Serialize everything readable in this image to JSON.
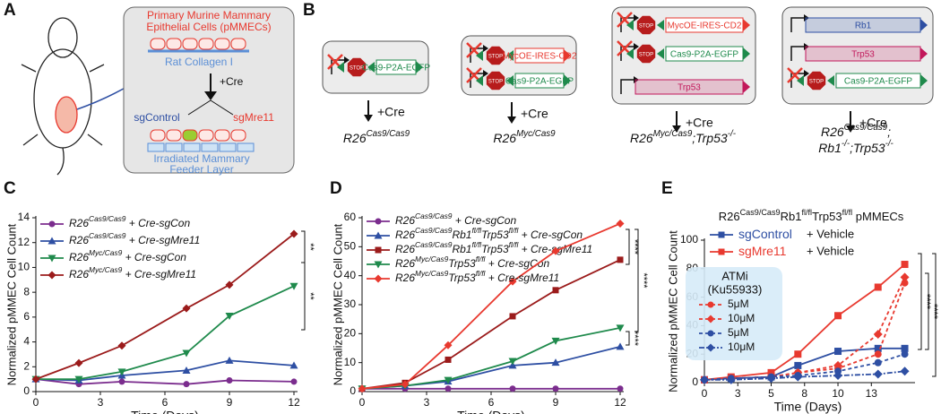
{
  "panel_a": {
    "panel_label": "A",
    "box_title": [
      "Primary Murine Mammary",
      "Epithelial Cells (pMMECs)"
    ],
    "collagen": "Rat Collagen I",
    "cre": "+Cre",
    "sg_control": "sgControl",
    "sg_mre11": "sgMre11",
    "feeder": [
      "Irradiated Mammary",
      "Feeder Layer"
    ]
  },
  "panel_b": {
    "panel_label": "B",
    "cre": "+Cre",
    "groups": [
      {
        "constructs": [
          {
            "label": "Cas9-P2A-EGFP",
            "stop_label": "STOP",
            "color": "#1f8a4c"
          }
        ],
        "genotype": [
          [
            "R26",
            "Cas9/Cas9"
          ]
        ]
      },
      {
        "constructs": [
          {
            "label": "MycOE-IRES-CD2",
            "stop_label": "STOP",
            "color": "#e8392f"
          },
          {
            "label": "Cas9-P2A-EGFP",
            "stop_label": "STOP",
            "color": "#1f8a4c"
          }
        ],
        "genotype": [
          [
            "R26",
            "Myc/Cas9"
          ]
        ]
      },
      {
        "constructs": [
          {
            "label": "MycOE-IRES-CD2",
            "stop_label": "STOP",
            "color": "#e8392f"
          },
          {
            "label": "Cas9-P2A-EGFP",
            "stop_label": "STOP",
            "color": "#1f8a4c"
          },
          {
            "label": "Trp53",
            "color": "#c2185b",
            "filled": true
          }
        ],
        "genotype": [
          [
            "R26",
            "Myc/Cas9",
            ";Trp53",
            "-/-"
          ]
        ]
      },
      {
        "constructs": [
          {
            "label": "Rb1",
            "color": "#2e4fa3",
            "filled": true
          },
          {
            "label": "Trp53",
            "color": "#c2185b",
            "filled": true
          },
          {
            "label": "Cas9-P2A-EGFP",
            "stop_label": "STOP",
            "color": "#1f8a4c"
          }
        ],
        "genotype": [
          [
            "R26",
            "Cas9/Cas9",
            ";"
          ],
          [
            "Rb1",
            "-/-",
            ";Trp53",
            "-/-"
          ]
        ]
      }
    ]
  },
  "chart_data": [
    {
      "type": "line",
      "panel_label": "C",
      "x_label": "Time (Days)",
      "y_label": "Normalized pMMEC Cell Count",
      "x": [
        0,
        2,
        4,
        7,
        9,
        12
      ],
      "xlim": [
        0,
        12
      ],
      "xticks": [
        0,
        3,
        6,
        9,
        12
      ],
      "ylim": [
        0,
        14
      ],
      "yticks": [
        0,
        2,
        4,
        6,
        8,
        10,
        12,
        14
      ],
      "series": [
        {
          "name": [
            "R26",
            "Cas9/Cas9",
            " + Cre-sgCon"
          ],
          "color": "#7b2d8e",
          "marker": "circle",
          "values": [
            1,
            0.6,
            0.8,
            0.6,
            0.9,
            0.8
          ]
        },
        {
          "name": [
            "R26",
            "Cas9/Cas9",
            " + Cre-sgMre11"
          ],
          "color": "#2e4fa3",
          "marker": "triangle-up",
          "values": [
            1,
            0.9,
            1.3,
            1.7,
            2.5,
            2.1
          ]
        },
        {
          "name": [
            "R26",
            "Myc/Cas9",
            " + Cre-sgCon"
          ],
          "color": "#1f8a4c",
          "marker": "triangle-down",
          "values": [
            1,
            1.0,
            1.6,
            3.1,
            6.1,
            8.5
          ]
        },
        {
          "name": [
            "R26",
            "Myc/Cas9",
            " + Cre-sgMre11"
          ],
          "color": "#9b1b1b",
          "marker": "diamond",
          "values": [
            1,
            2.3,
            3.7,
            6.7,
            8.6,
            12.7
          ]
        }
      ],
      "annotations": [
        "**",
        "**"
      ]
    },
    {
      "type": "line",
      "panel_label": "D",
      "x_label": "Time (Days)",
      "y_label": "Normalized pMMEC Cell Count",
      "x": [
        0,
        2,
        4,
        7,
        9,
        12
      ],
      "xlim": [
        0,
        12
      ],
      "xticks": [
        0,
        3,
        6,
        9,
        12
      ],
      "ylim": [
        0,
        60
      ],
      "yticks": [
        0,
        10,
        20,
        30,
        40,
        50,
        60
      ],
      "series": [
        {
          "name": [
            "R26",
            "Cas9/Cas9",
            " + Cre-sgCon"
          ],
          "color": "#7b2d8e",
          "marker": "circle",
          "values": [
            1,
            1,
            1,
            1,
            1,
            1
          ]
        },
        {
          "name": [
            "R26",
            "Cas9/Cas9",
            "Rb1",
            "fl/fl",
            "Trp53",
            "fl/fl",
            " + Cre-sgCon"
          ],
          "color": "#2e4fa3",
          "marker": "triangle-up",
          "values": [
            1,
            2,
            3.5,
            9,
            10,
            15.5
          ]
        },
        {
          "name": [
            "R26",
            "Cas9/Cas9",
            "Rb1",
            "fl/fl",
            "Trp53",
            "fl/fl",
            " + Cre-sgMre11"
          ],
          "color": "#9b1b1b",
          "marker": "square",
          "values": [
            1,
            3,
            11,
            26,
            35,
            45.5
          ]
        },
        {
          "name": [
            "R26",
            "Myc/Cas9",
            "Trp53",
            "fl/fl",
            " + Cre-sgCon"
          ],
          "color": "#1f8a4c",
          "marker": "triangle-down",
          "values": [
            1,
            2,
            4,
            10.5,
            17.5,
            22
          ]
        },
        {
          "name": [
            "R26",
            "Myc/Cas9",
            "Trp53",
            "fl/fl",
            " + Cre-sgMre11"
          ],
          "color": "#e8392f",
          "marker": "diamond",
          "values": [
            1,
            2.5,
            16,
            38,
            48.5,
            58
          ]
        }
      ],
      "annotations": [
        "****",
        "****",
        "****"
      ]
    },
    {
      "type": "line",
      "panel_label": "E",
      "title": [
        "R26",
        "Cas9/Cas9",
        "Rb1",
        "fl/fl",
        "Trp53",
        "fl/fl",
        " pMMECs"
      ],
      "x_label": "Time (Days)",
      "y_label": "Normalized pMMEC Cell Count",
      "x": [
        0,
        2,
        5,
        7,
        10,
        13,
        15
      ],
      "xlim": [
        0,
        15.5
      ],
      "xticks": [
        0,
        {
          "value": 2.5,
          "label": "3"
        },
        5,
        {
          "value": 7.5,
          "label": "8"
        },
        10,
        {
          "value": 12.5,
          "label": "13"
        }
      ],
      "ylim": [
        0,
        100
      ],
      "yticks": [
        0,
        20,
        40,
        60,
        80,
        100
      ],
      "inset_title": [
        "ATMi",
        "(Ku55933)"
      ],
      "series": [
        {
          "name": [
            "sgControl"
          ],
          "legend_suffix": "+ Vehicle",
          "color": "#2e4fa3",
          "marker": "square",
          "values": [
            2,
            3,
            4,
            12,
            22,
            24,
            24
          ]
        },
        {
          "name": [
            "sgMre11"
          ],
          "legend_suffix": "+ Vehicle",
          "color": "#e8392f",
          "marker": "square",
          "values": [
            2,
            4,
            7,
            20,
            47,
            67,
            83
          ]
        },
        {
          "name": [
            "5μM"
          ],
          "color": "#e8392f",
          "marker": "circle",
          "dash": "4 3",
          "values": [
            2,
            3,
            4,
            7,
            10,
            20,
            70
          ]
        },
        {
          "name": [
            "10μM"
          ],
          "color": "#e8392f",
          "marker": "diamond",
          "dash": "4 3",
          "values": [
            2,
            3,
            4,
            7,
            12,
            34,
            74
          ]
        },
        {
          "name": [
            "5μM"
          ],
          "color": "#2e4fa3",
          "marker": "circle",
          "dash": "4 3",
          "values": [
            2,
            3,
            4,
            5,
            8,
            14,
            20
          ]
        },
        {
          "name": [
            "10μM"
          ],
          "color": "#2e4fa3",
          "marker": "diamond",
          "dash": "6 2 2 2",
          "values": [
            2,
            2,
            3,
            4,
            5,
            6,
            8
          ]
        }
      ],
      "annotations": [
        "****",
        "****",
        "****"
      ]
    }
  ]
}
